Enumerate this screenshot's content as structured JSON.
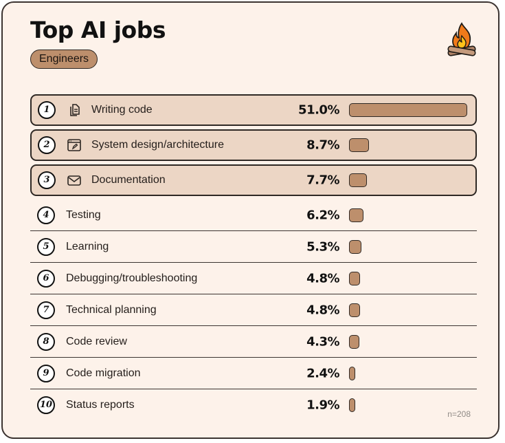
{
  "header": {
    "title": "Top AI jobs",
    "tag": "Engineers"
  },
  "footer": {
    "sample_size": "n=208"
  },
  "colors": {
    "background": "#fdf2ea",
    "highlight_row": "#ecd6c5",
    "bar_fill": "#bd8f6c",
    "outline": "#2e2824"
  },
  "chart_data": {
    "type": "bar",
    "orientation": "horizontal",
    "title": "Top AI jobs",
    "subtitle": "Engineers",
    "xlabel": "",
    "ylabel": "",
    "unit": "%",
    "xlim": [
      0,
      51.0
    ],
    "grid": false,
    "legend": "none",
    "annotation": "n=208",
    "categories": [
      "Writing code",
      "System design/architecture",
      "Documentation",
      "Testing",
      "Learning",
      "Debugging/troubleshooting",
      "Technical planning",
      "Code review",
      "Code migration",
      "Status reports"
    ],
    "values": [
      51.0,
      8.7,
      7.7,
      6.2,
      5.3,
      4.8,
      4.8,
      4.3,
      2.4,
      1.9
    ],
    "value_labels": [
      "51.0%",
      "8.7%",
      "7.7%",
      "6.2%",
      "5.3%",
      "4.8%",
      "4.8%",
      "4.3%",
      "2.4%",
      "1.9%"
    ],
    "ranks": [
      "1",
      "2",
      "3",
      "4",
      "5",
      "6",
      "7",
      "8",
      "9",
      "10"
    ],
    "highlighted_top": 3,
    "icons": [
      "document-copy-icon",
      "browser-edit-icon",
      "envelope-icon"
    ]
  }
}
